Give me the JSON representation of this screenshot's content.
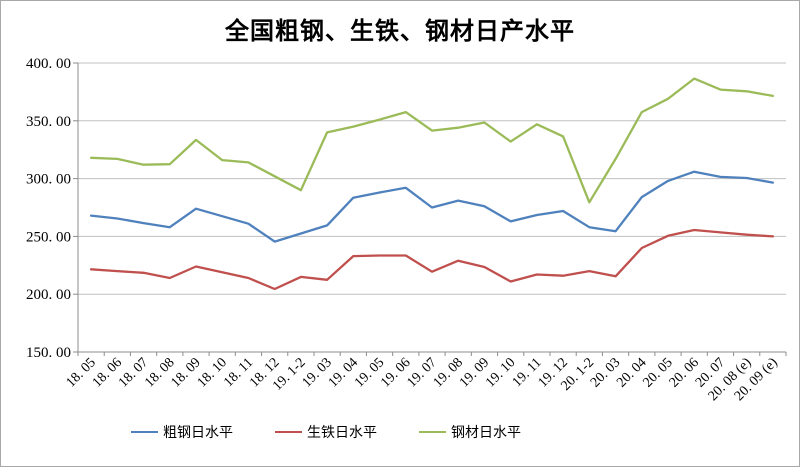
{
  "chart_title": "全国粗钢、生铁、钢材日产水平",
  "colors": {
    "background": "#FFFFFF",
    "frame_border": "#A8A8A8",
    "gridline": "#C0C0C0",
    "axis": "#8C8C8C",
    "text": "#000000"
  },
  "chart_data": {
    "type": "line",
    "title": "全国粗钢、生铁、钢材日产水平",
    "categories": [
      "18. 05",
      "18. 06",
      "18. 07",
      "18. 08",
      "18. 09",
      "18. 10",
      "18. 11",
      "18. 12",
      "19. 1-2",
      "19. 03",
      "19. 04",
      "19. 05",
      "19. 06",
      "19. 07",
      "19. 08",
      "19. 09",
      "19. 10",
      "19. 11",
      "19. 12",
      "20. 1-2",
      "20. 03",
      "20. 04",
      "20. 05",
      "20. 06",
      "20. 07",
      "20. 08 (e)",
      "20. 09 (e)"
    ],
    "series": [
      {
        "name": "粗钢日水平",
        "color": "#4F81BD",
        "values": [
          268,
          265.5,
          261.5,
          258,
          274,
          267.5,
          261,
          245.5,
          252.5,
          259.5,
          283.5,
          288,
          292,
          275,
          281,
          276,
          263,
          268.5,
          272,
          258,
          254.5,
          284,
          298,
          306,
          301.5,
          300.5,
          296.5
        ]
      },
      {
        "name": "生铁日水平",
        "color": "#C0504D",
        "values": [
          221.5,
          220,
          218.5,
          214,
          224,
          219,
          214,
          204.5,
          215,
          212.5,
          233,
          233.5,
          233.5,
          219.5,
          229,
          223.5,
          211,
          217,
          216,
          220,
          215.5,
          240,
          250.5,
          255.5,
          253.5,
          251.5,
          250
        ]
      },
      {
        "name": "钢材日水平",
        "color": "#9BBB59",
        "values": [
          318,
          317,
          312,
          312.5,
          333.5,
          316,
          314,
          302,
          290,
          340,
          345,
          351,
          357.5,
          341.5,
          344,
          348.5,
          332,
          347,
          336.5,
          279.5,
          317,
          357.5,
          369,
          386.5,
          377,
          375.5,
          371.5
        ]
      }
    ],
    "y_axis": {
      "min": 150,
      "max": 400,
      "step": 50,
      "tick_labels": [
        "400. 00",
        "350. 00",
        "300. 00",
        "250. 00",
        "200. 00",
        "150. 00"
      ]
    },
    "grid": true,
    "legend_position": "bottom",
    "legend_labels": [
      "粗钢日水平",
      "生铁日水平",
      "钢材日水平"
    ]
  }
}
